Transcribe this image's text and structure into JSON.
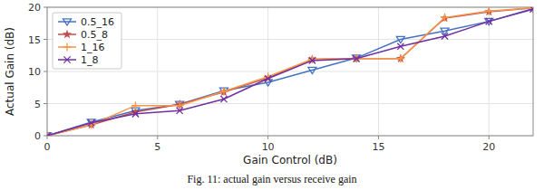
{
  "chart_data": {
    "type": "line",
    "title": "Fig. 11: actual gain versus receive gain",
    "xlabel": "Gain Control (dB)",
    "ylabel": "Actual Gain (dB)",
    "x": [
      0,
      2,
      4,
      6,
      8,
      10,
      12,
      14,
      16,
      18,
      20,
      22
    ],
    "xlim": [
      0,
      22
    ],
    "ylim": [
      0,
      20
    ],
    "xticks": [
      0,
      5,
      10,
      15,
      20
    ],
    "yticks": [
      0,
      5,
      10,
      15,
      20
    ],
    "grid": true,
    "legend": "upper left",
    "series": [
      {
        "name": "0.5_16",
        "color": "#4472C4",
        "marker": "triangle-down",
        "values": [
          0,
          2.1,
          3.9,
          4.9,
          7.0,
          8.3,
          10.2,
          12.1,
          15.0,
          16.3,
          17.8,
          19.8
        ]
      },
      {
        "name": "0.5_8",
        "color": "#C0504D",
        "marker": "star",
        "values": [
          0,
          1.7,
          3.7,
          4.9,
          6.8,
          9.0,
          11.9,
          12.0,
          12.0,
          18.3,
          19.3,
          19.9
        ]
      },
      {
        "name": "1_16",
        "color": "#F79646",
        "marker": "plus",
        "values": [
          0,
          1.7,
          4.7,
          4.7,
          6.9,
          9.2,
          11.9,
          12.0,
          12.0,
          18.4,
          19.4,
          19.9
        ]
      },
      {
        "name": "1_8",
        "color": "#7030A0",
        "marker": "x",
        "values": [
          0,
          2.0,
          3.4,
          3.9,
          5.7,
          8.9,
          11.7,
          12.0,
          13.9,
          15.5,
          17.8,
          19.7
        ]
      }
    ]
  }
}
